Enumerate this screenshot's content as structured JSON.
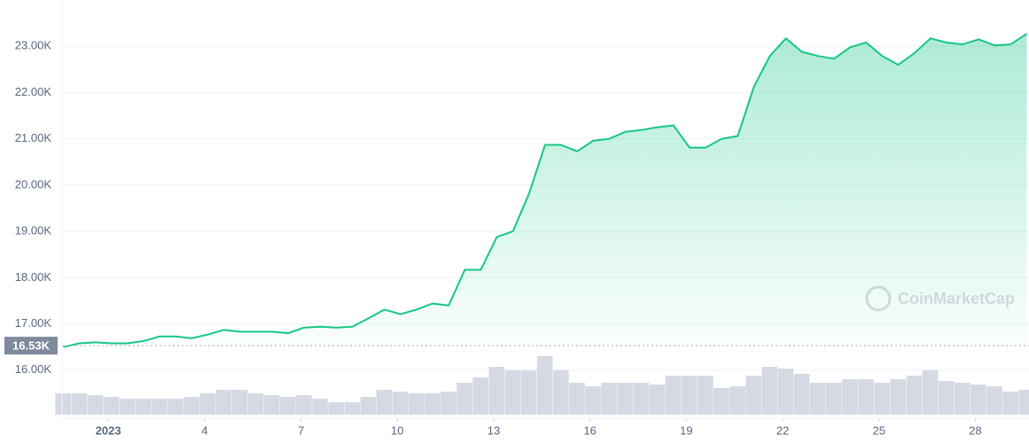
{
  "chart_data": {
    "type": "line",
    "x": [
      -0.4,
      0.1,
      0.6,
      1.1,
      1.6,
      2.1,
      2.6,
      3.1,
      3.6,
      4.1,
      4.6,
      5.1,
      5.6,
      6.1,
      6.6,
      7.1,
      7.6,
      8.1,
      8.6,
      9.1,
      9.6,
      10.1,
      10.6,
      11.1,
      11.6,
      12.1,
      12.6,
      13.1,
      13.6,
      14.1,
      14.6,
      15.1,
      15.6,
      16.1,
      16.6,
      17.1,
      17.6,
      18.1,
      18.6,
      19.1,
      19.6,
      20.1,
      20.6,
      21.1,
      21.6,
      22.1,
      22.6,
      23.1,
      23.6,
      24.1,
      24.6,
      25.1,
      25.6,
      26.1,
      26.6,
      27.1,
      27.6,
      28.1,
      28.6,
      29.1,
      29.6
    ],
    "series": [
      {
        "color": "#16c784",
        "values": [
          16500,
          16580,
          16600,
          16580,
          16580,
          16630,
          16730,
          16730,
          16690,
          16770,
          16870,
          16830,
          16830,
          16830,
          16800,
          16920,
          16940,
          16920,
          16940,
          17120,
          17310,
          17210,
          17310,
          17440,
          17400,
          18170,
          18170,
          18880,
          19000,
          19810,
          20870,
          20870,
          20730,
          20960,
          21000,
          21150,
          21190,
          21250,
          21290,
          20810,
          20810,
          21000,
          21060,
          22120,
          22790,
          23170,
          22880,
          22790,
          22730,
          22980,
          23080,
          22790,
          22600,
          22850,
          23170,
          23080,
          23040,
          23150,
          23020,
          23040,
          23270
        ]
      },
      {
        "color": "#d5d9e3",
        "axis": "y2",
        "values": [
          24,
          24,
          22,
          20,
          18,
          18,
          18,
          18,
          20,
          24,
          28,
          28,
          24,
          22,
          20,
          22,
          18,
          14,
          14,
          20,
          28,
          26,
          24,
          24,
          26,
          36,
          42,
          54,
          50,
          50,
          66,
          50,
          36,
          32,
          36,
          36,
          36,
          34,
          44,
          44,
          44,
          30,
          32,
          44,
          54,
          52,
          46,
          36,
          36,
          40,
          40,
          36,
          40,
          44,
          50,
          38,
          36,
          34,
          32,
          26,
          28
        ]
      }
    ],
    "xlim": [
      -0.44,
      29.67
    ],
    "xticks": [
      {
        "value": 1,
        "label": "2023"
      },
      4,
      7,
      10,
      13,
      16,
      19,
      22,
      25,
      28
    ],
    "ylim": [
      15000,
      24000
    ],
    "yticks": [
      {
        "value": 16000,
        "label": "16.00K"
      },
      {
        "value": 17000,
        "label": "17.00K"
      },
      {
        "value": 18000,
        "label": "18.00K"
      },
      {
        "value": 19000,
        "label": "19.00K"
      },
      {
        "value": 20000,
        "label": "20.00K"
      },
      {
        "value": 21000,
        "label": "21.00K"
      },
      {
        "value": 22000,
        "label": "22.00K"
      },
      {
        "value": 23000,
        "label": "23.00K"
      }
    ],
    "y2lim": [
      0,
      80
    ],
    "reference_line": {
      "value": 16530,
      "label": "16.53K"
    },
    "watermark": "CoinMarketCap",
    "grid": true
  }
}
